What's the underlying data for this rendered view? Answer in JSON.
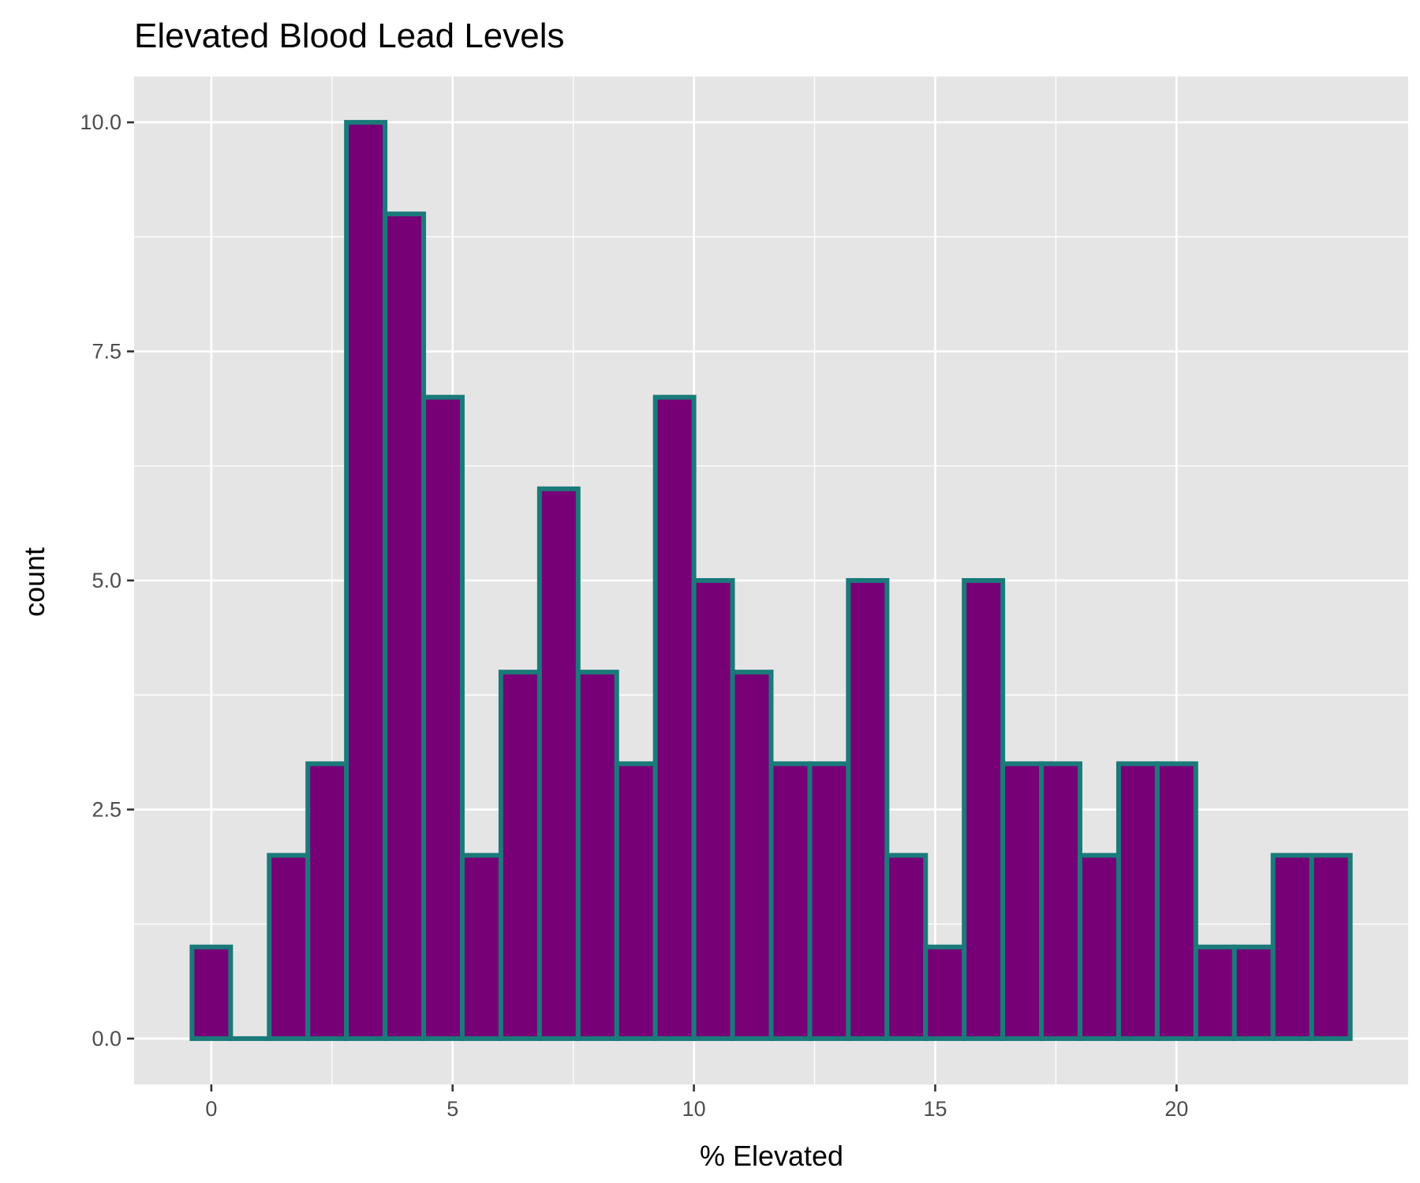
{
  "chart_data": {
    "type": "bar",
    "title": "Elevated Blood Lead Levels",
    "xlabel": "% Elevated",
    "ylabel": "count",
    "bin_width": 0.8,
    "bins": [
      {
        "center": 0.0,
        "count": 1
      },
      {
        "center": 0.8,
        "count": 0
      },
      {
        "center": 1.6,
        "count": 2
      },
      {
        "center": 2.4,
        "count": 3
      },
      {
        "center": 3.2,
        "count": 10
      },
      {
        "center": 4.0,
        "count": 9
      },
      {
        "center": 4.8,
        "count": 7
      },
      {
        "center": 5.6,
        "count": 2
      },
      {
        "center": 6.4,
        "count": 4
      },
      {
        "center": 7.2,
        "count": 6
      },
      {
        "center": 8.0,
        "count": 4
      },
      {
        "center": 8.8,
        "count": 3
      },
      {
        "center": 9.6,
        "count": 7
      },
      {
        "center": 10.4,
        "count": 5
      },
      {
        "center": 11.2,
        "count": 4
      },
      {
        "center": 12.0,
        "count": 3
      },
      {
        "center": 12.8,
        "count": 3
      },
      {
        "center": 13.6,
        "count": 5
      },
      {
        "center": 14.4,
        "count": 2
      },
      {
        "center": 15.2,
        "count": 1
      },
      {
        "center": 16.0,
        "count": 5
      },
      {
        "center": 16.8,
        "count": 3
      },
      {
        "center": 17.6,
        "count": 3
      },
      {
        "center": 18.4,
        "count": 2
      },
      {
        "center": 19.2,
        "count": 3
      },
      {
        "center": 20.0,
        "count": 3
      },
      {
        "center": 20.8,
        "count": 1
      },
      {
        "center": 21.6,
        "count": 1
      },
      {
        "center": 22.4,
        "count": 2
      },
      {
        "center": 23.2,
        "count": 2
      }
    ],
    "xlim": [
      -1.6,
      24.8
    ],
    "ylim": [
      -0.5,
      10.5
    ],
    "x_ticks": [
      0,
      5,
      10,
      15,
      20
    ],
    "x_tick_labels": [
      "0",
      "5",
      "10",
      "15",
      "20"
    ],
    "y_ticks": [
      0,
      2.5,
      5,
      7.5,
      10
    ],
    "y_tick_labels": [
      "0.0",
      "2.5",
      "5.0",
      "7.5",
      "10.0"
    ],
    "grid": true,
    "legend": "none",
    "colors": {
      "bar_fill": "#770077",
      "bar_outline": "#1a7a7a",
      "panel_background": "#e5e5e5",
      "grid": "#ffffff",
      "tick_text": "#4d4d4d",
      "title_text": "#000000"
    }
  }
}
